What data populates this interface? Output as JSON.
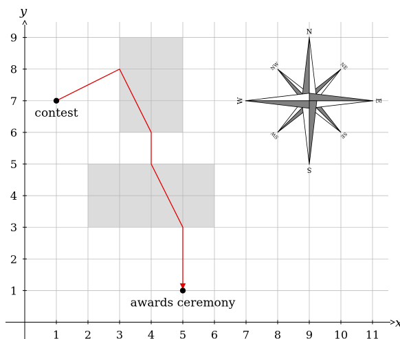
{
  "diagram": {
    "x_axis_label": "x",
    "y_axis_label": "y",
    "x_ticks": [
      1,
      2,
      3,
      4,
      5,
      6,
      7,
      8,
      9,
      10,
      11
    ],
    "y_ticks": [
      1,
      2,
      3,
      4,
      5,
      6,
      7,
      8,
      9
    ],
    "shaded_regions": [
      {
        "x1": 3,
        "y1": 6,
        "x2": 5,
        "y2": 9
      },
      {
        "x1": 2,
        "y1": 3,
        "x2": 6,
        "y2": 5
      }
    ],
    "route": [
      [
        1,
        7
      ],
      [
        3,
        8
      ],
      [
        4,
        6
      ],
      [
        4,
        5
      ],
      [
        5,
        3
      ],
      [
        5,
        1
      ]
    ],
    "route_color": "#e00000",
    "shade_color": "#dcdcdc",
    "grid_color": "#b3b3b3",
    "points": [
      {
        "name": "start-point",
        "x": 1,
        "y": 7,
        "label": "contest"
      },
      {
        "name": "end-point",
        "x": 5,
        "y": 1,
        "label": "awards ceremony"
      }
    ],
    "compass": {
      "center": {
        "x": 9,
        "y": 7
      },
      "labels": {
        "N": "N",
        "S": "S",
        "E": "E",
        "W": "W",
        "NE": "NE",
        "NW": "NW",
        "SE": "SE",
        "SW": "SW"
      },
      "dark_color": "#808080"
    }
  }
}
